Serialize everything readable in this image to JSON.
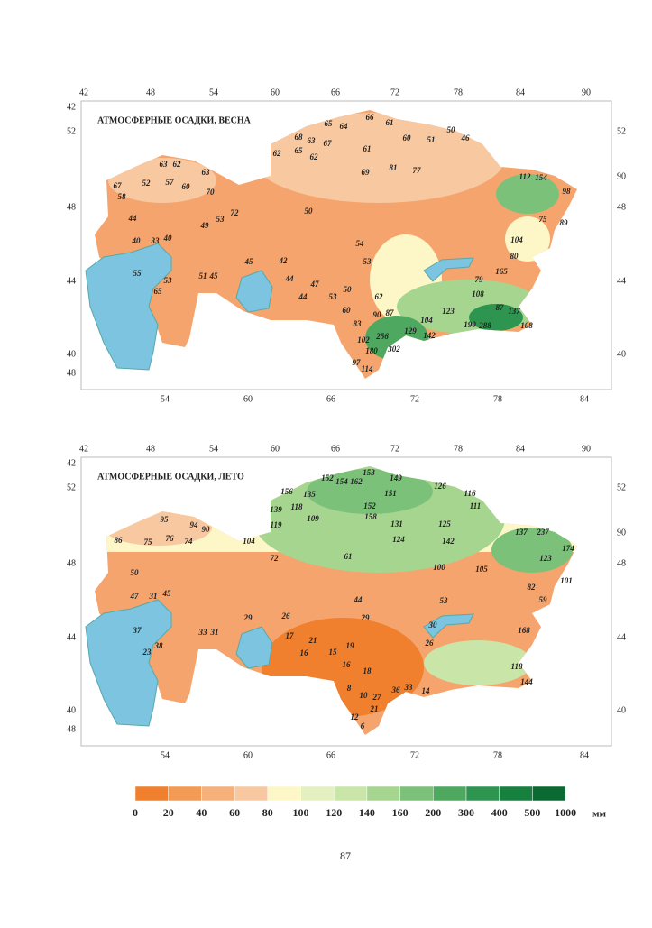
{
  "maps": [
    {
      "title": "АТМОСФЕРНЫЕ ОСАДКИ, ВЕСНА",
      "top_labels": [
        "42",
        "48",
        "54",
        "60",
        "66",
        "72",
        "78",
        "84",
        "90"
      ],
      "left_labels": [
        "42",
        "52",
        "48",
        "44",
        "40",
        "48"
      ],
      "right_labels": [
        "52",
        "90",
        "48",
        "44",
        "40"
      ],
      "bottom_labels": [
        "54",
        "60",
        "66",
        "72",
        "78",
        "84"
      ],
      "values": [
        "65",
        "64",
        "66",
        "61",
        "50",
        "68",
        "63",
        "67",
        "61",
        "60",
        "51",
        "46",
        "62",
        "65",
        "62",
        "69",
        "81",
        "77",
        "63",
        "62",
        "63",
        "67",
        "52",
        "57",
        "60",
        "70",
        "58",
        "44",
        "49",
        "53",
        "72",
        "50",
        "54",
        "53",
        "40",
        "33",
        "40",
        "55",
        "65",
        "53",
        "51",
        "45",
        "45",
        "42",
        "44",
        "47",
        "44",
        "53",
        "50",
        "62",
        "87",
        "90",
        "60",
        "83",
        "102",
        "256",
        "180",
        "302",
        "97",
        "114",
        "129",
        "142",
        "104",
        "123",
        "288",
        "190",
        "108",
        "137",
        "87",
        "108",
        "165",
        "80",
        "104",
        "112",
        "154",
        "98",
        "89",
        "75",
        "79"
      ]
    },
    {
      "title": "АТМОСФЕРНЫЕ ОСАДКИ, ЛЕТО",
      "top_labels": [
        "42",
        "48",
        "54",
        "60",
        "66",
        "72",
        "78",
        "84",
        "90"
      ],
      "left_labels": [
        "42",
        "52",
        "48",
        "44",
        "40",
        "48"
      ],
      "right_labels": [
        "52",
        "90",
        "48",
        "44",
        "40"
      ],
      "bottom_labels": [
        "54",
        "60",
        "66",
        "72",
        "78",
        "84"
      ],
      "values": [
        "153",
        "149",
        "152",
        "154",
        "162",
        "126",
        "156",
        "135",
        "151",
        "116",
        "139",
        "118",
        "152",
        "111",
        "158",
        "119",
        "109",
        "131",
        "125",
        "95",
        "94",
        "90",
        "86",
        "75",
        "76",
        "74",
        "104",
        "124",
        "142",
        "137",
        "237",
        "174",
        "50",
        "72",
        "61",
        "100",
        "105",
        "47",
        "31",
        "45",
        "44",
        "53",
        "29",
        "26",
        "29",
        "37",
        "33",
        "31",
        "38",
        "23",
        "17",
        "21",
        "16",
        "15",
        "19",
        "16",
        "18",
        "8",
        "10",
        "27",
        "36",
        "21",
        "12",
        "6",
        "33",
        "30",
        "26",
        "14",
        "118",
        "144",
        "168",
        "59",
        "82",
        "101",
        "123"
      ]
    }
  ],
  "legend": {
    "colors": [
      "#f07f2e",
      "#f39a55",
      "#f6b07a",
      "#f8c8a0",
      "#fdf7c8",
      "#e4f0c0",
      "#c9e5a8",
      "#a6d590",
      "#7cc17a",
      "#4ea860",
      "#2e9550",
      "#16813f",
      "#0b6a32"
    ],
    "labels": [
      "0",
      "20",
      "40",
      "60",
      "80",
      "100",
      "120",
      "140",
      "160",
      "200",
      "300",
      "400",
      "500",
      "1000"
    ],
    "unit": "мм"
  },
  "page": {
    "number": "87"
  }
}
